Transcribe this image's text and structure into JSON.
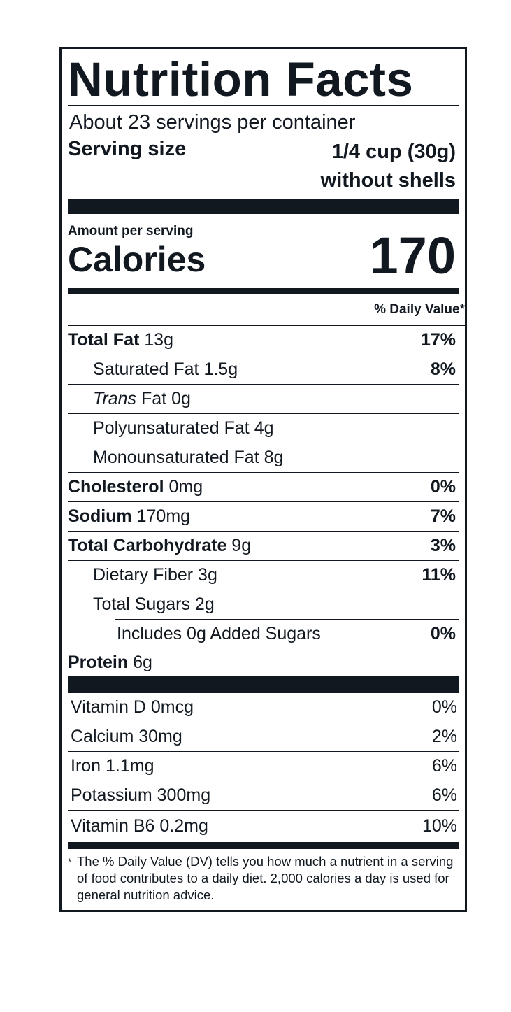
{
  "title": "Nutrition Facts",
  "servings_per_container": "About 23 servings per container",
  "serving_size_label": "Serving size",
  "serving_size_value": "1/4 cup (30g)",
  "serving_size_note": "without shells",
  "amount_per_serving": "Amount per serving",
  "calories_label": "Calories",
  "calories_value": "170",
  "daily_value_header": "% Daily Value*",
  "nutrients": [
    {
      "name": "Total Fat",
      "amount": "13g",
      "dv": "17%"
    },
    {
      "name": "Saturated Fat",
      "amount": "1.5g",
      "dv": "8%"
    },
    {
      "name_italic": "Trans",
      "name": "Fat",
      "amount": "0g",
      "dv": ""
    },
    {
      "name": "Polyunsaturated Fat",
      "amount": "4g",
      "dv": ""
    },
    {
      "name": "Monounsaturated Fat",
      "amount": "8g",
      "dv": ""
    },
    {
      "name": "Cholesterol",
      "amount": "0mg",
      "dv": "0%"
    },
    {
      "name": "Sodium",
      "amount": "170mg",
      "dv": "7%"
    },
    {
      "name": "Total Carbohydrate",
      "amount": "9g",
      "dv": "3%"
    },
    {
      "name": "Dietary Fiber",
      "amount": "3g",
      "dv": "11%"
    },
    {
      "name": "Total Sugars",
      "amount": "2g",
      "dv": ""
    },
    {
      "name": "Includes 0g Added Sugars",
      "amount": "",
      "dv": "0%"
    },
    {
      "name": "Protein",
      "amount": "6g",
      "dv": ""
    }
  ],
  "vitamins": [
    {
      "label": "Vitamin D 0mcg",
      "dv": "0%"
    },
    {
      "label": "Calcium 30mg",
      "dv": "2%"
    },
    {
      "label": "Iron 1.1mg",
      "dv": "6%"
    },
    {
      "label": "Potassium 300mg",
      "dv": "6%"
    },
    {
      "label": "Vitamin B6 0.2mg",
      "dv": "10%"
    }
  ],
  "footnote_mark": "*",
  "footnote": "The % Daily Value (DV) tells you how much a nutrient in a serving of food contributes to a daily diet. 2,000 calories a day is used for general nutrition advice."
}
